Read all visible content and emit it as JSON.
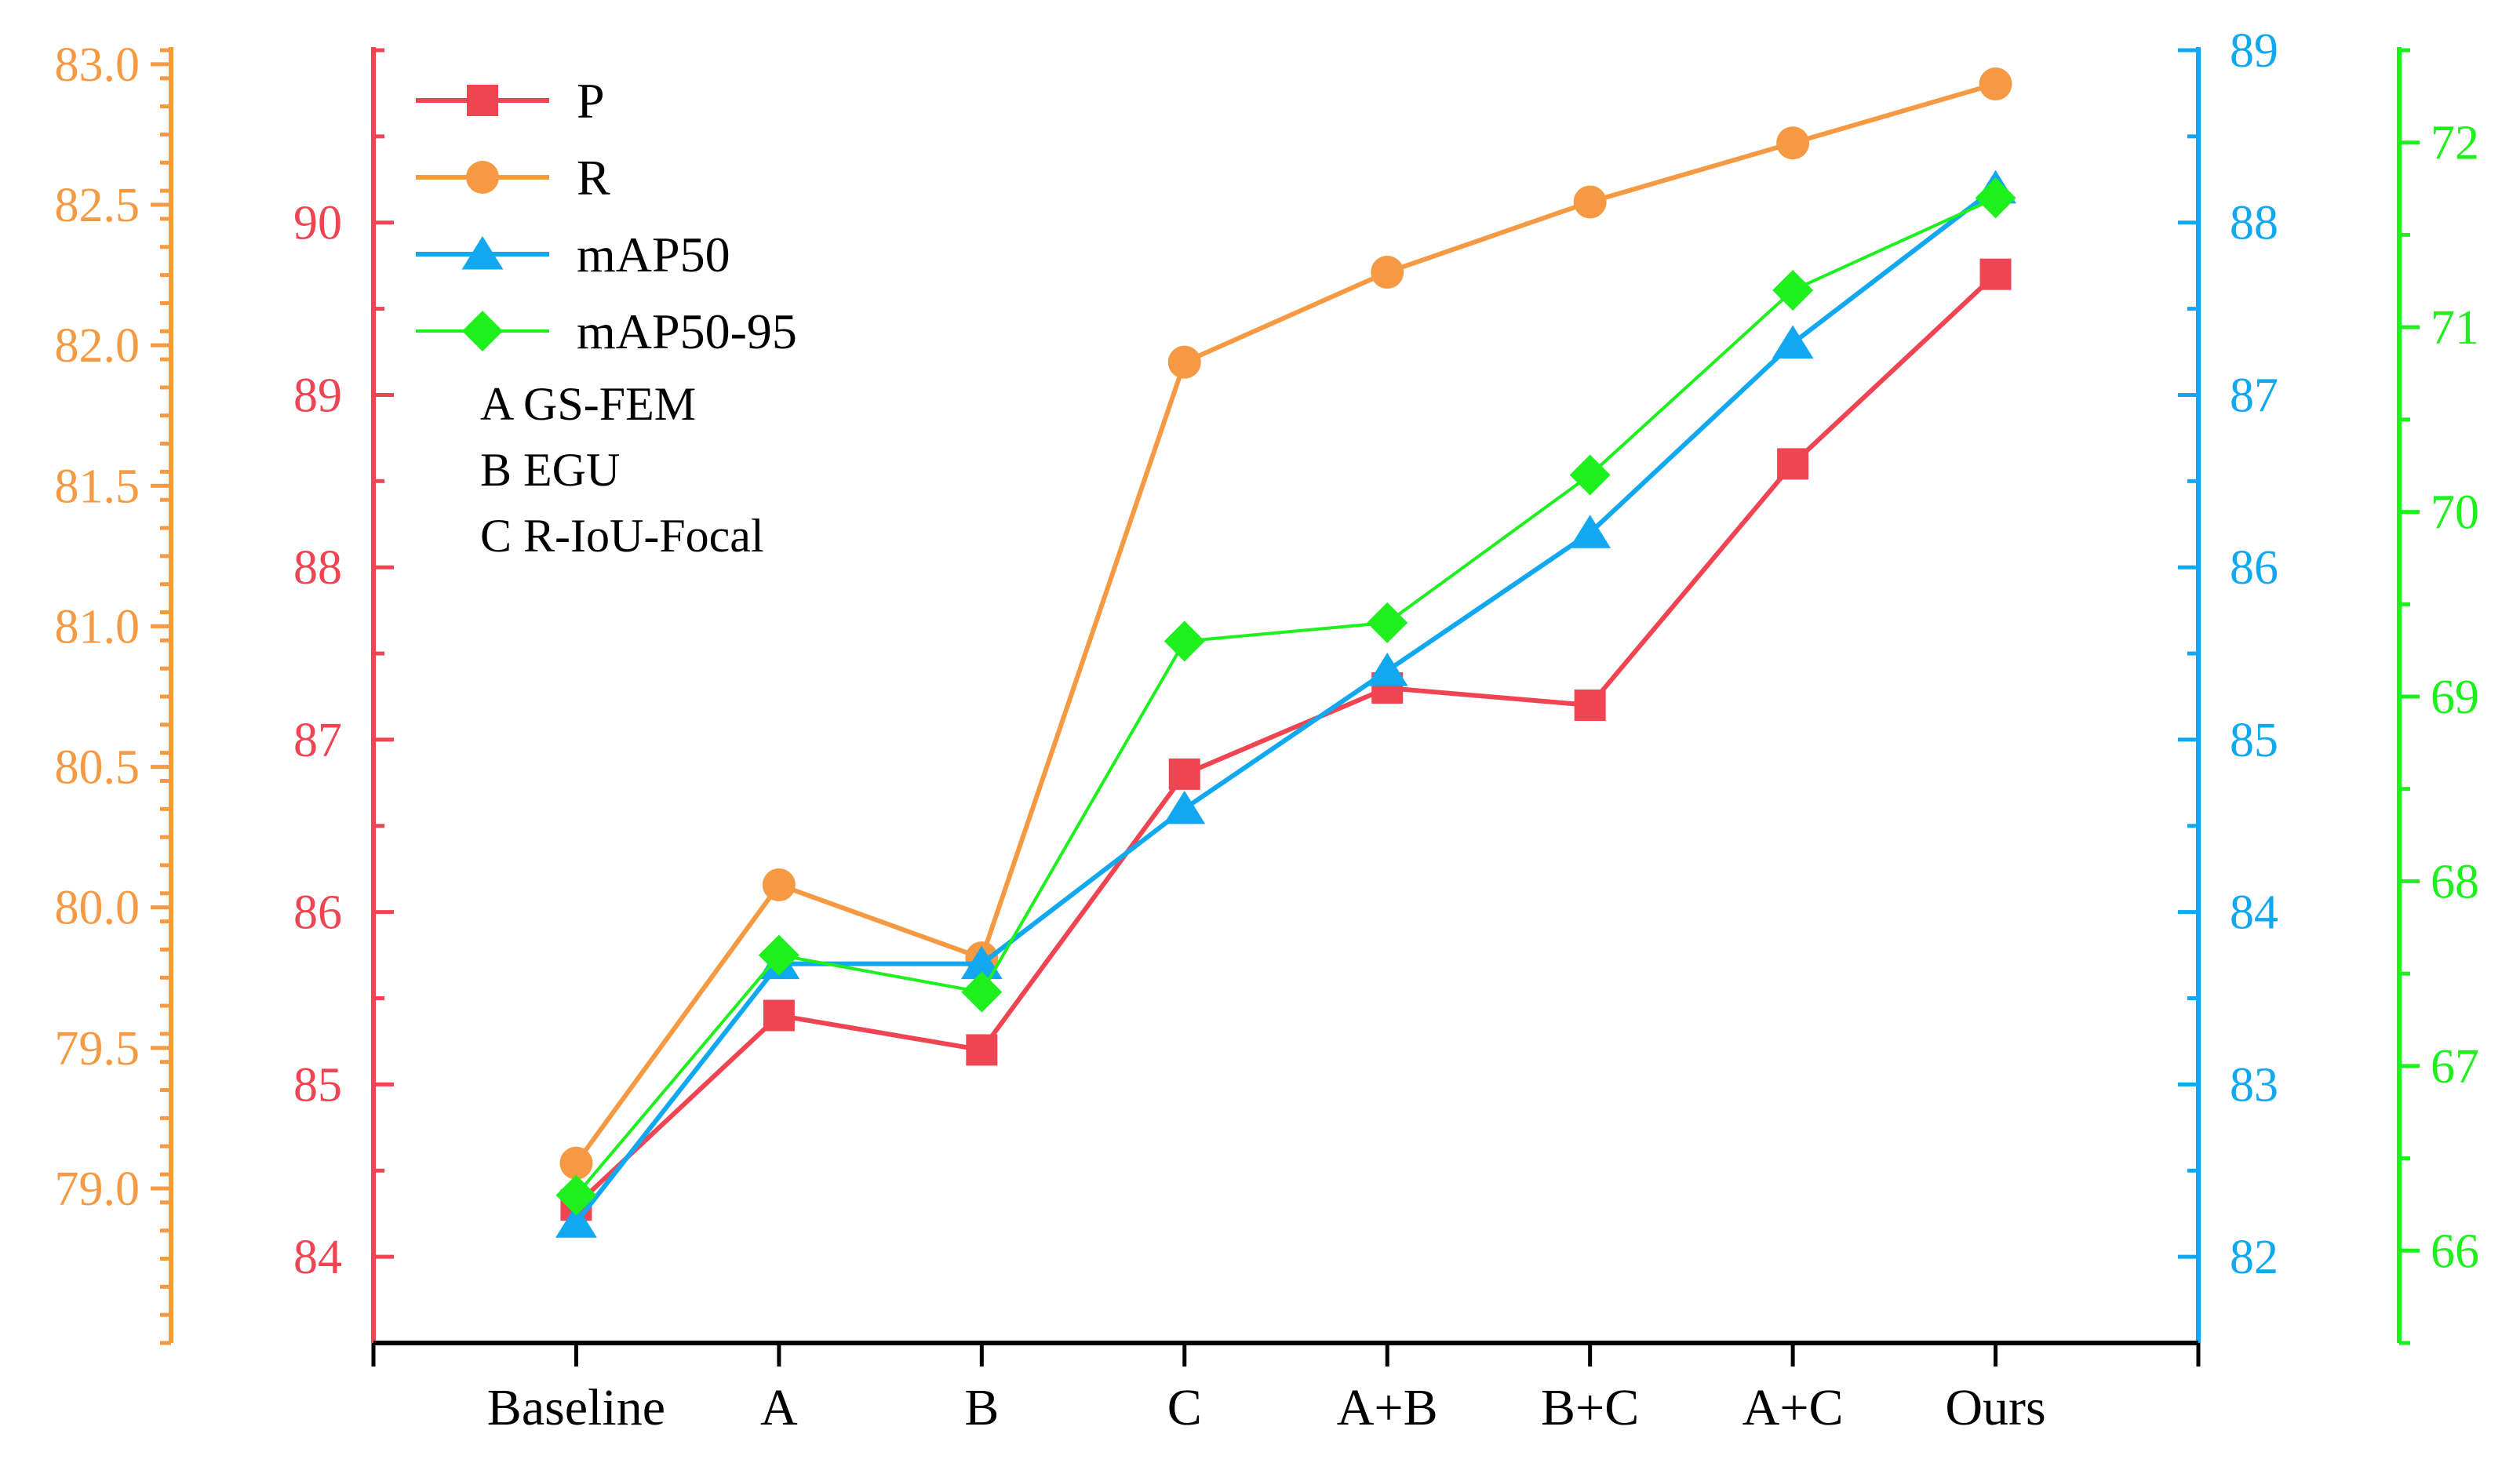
{
  "chart_data": {
    "type": "line",
    "title": "",
    "xlabel": "",
    "categories": [
      "Baseline",
      "A",
      "B",
      "C",
      "A+B",
      "B+C",
      "A+C",
      "Ours"
    ],
    "axes": {
      "p": {
        "name": "P",
        "side": "left-inner",
        "color": "#ef4452",
        "ylim": [
          83.5,
          91.0
        ],
        "ticks": [
          84,
          85,
          86,
          87,
          88,
          89,
          90
        ]
      },
      "r": {
        "name": "R",
        "side": "left-outer",
        "color": "#f59a43",
        "ylim": [
          78.45,
          83.05
        ],
        "ticks": [
          "79.0",
          "79.5",
          "80.0",
          "80.5",
          "81.0",
          "81.5",
          "82.0",
          "82.5",
          "83.0"
        ]
      },
      "map50": {
        "name": "mAP50",
        "side": "right-inner",
        "color": "#11a8f0",
        "ylim": [
          81.5,
          89.0
        ],
        "ticks": [
          82,
          83,
          84,
          85,
          86,
          87,
          88,
          89
        ]
      },
      "map5095": {
        "name": "mAP50-95",
        "side": "right-outer",
        "color": "#1ef01e",
        "ylim": [
          65.5,
          72.5
        ],
        "ticks": [
          66,
          67,
          68,
          69,
          70,
          71,
          72
        ]
      }
    },
    "series": [
      {
        "name": "P",
        "axis": "p",
        "marker": "square",
        "color": "#ef4452",
        "values": [
          84.3,
          85.4,
          85.2,
          86.8,
          87.3,
          87.2,
          88.6,
          89.7
        ]
      },
      {
        "name": "R",
        "axis": "r",
        "marker": "circle",
        "color": "#f59a43",
        "values": [
          79.09,
          80.08,
          79.82,
          81.94,
          82.26,
          82.51,
          82.72,
          82.93
        ]
      },
      {
        "name": "mAP50",
        "axis": "map50",
        "marker": "triangle",
        "color": "#11a8f0",
        "values": [
          82.2,
          83.7,
          83.7,
          84.6,
          85.4,
          86.2,
          87.3,
          88.2
        ]
      },
      {
        "name": "mAP50-95",
        "axis": "map5095",
        "marker": "diamond",
        "color": "#1ef01e",
        "values": [
          66.3,
          67.6,
          67.4,
          69.3,
          69.4,
          70.2,
          71.2,
          71.7
        ]
      }
    ],
    "legend": {
      "placement": "top-left",
      "items": [
        "P",
        "R",
        "mAP50",
        "mAP50-95"
      ],
      "notes": [
        "A  GS-FEM",
        "B  EGU",
        "C  R-IoU-Focal"
      ]
    }
  }
}
